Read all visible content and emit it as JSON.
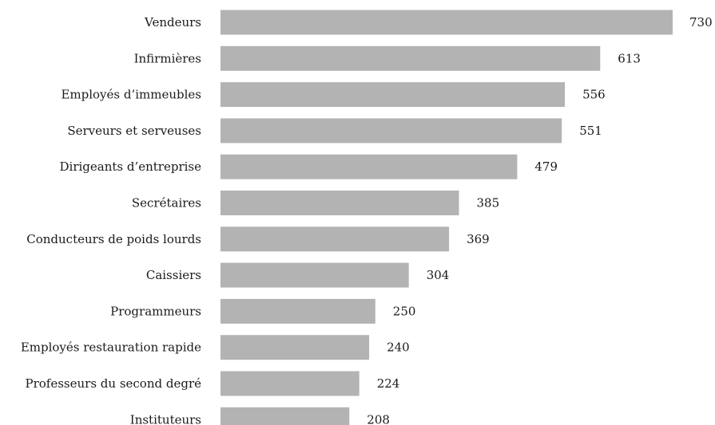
{
  "chart_data": {
    "type": "bar",
    "orientation": "horizontal",
    "categories": [
      "Vendeurs",
      "Infirmières",
      "Employés d’immeubles",
      "Serveurs et serveuses",
      "Dirigeants d’entreprise",
      "Secrétaires",
      "Conducteurs de poids lourds",
      "Caissiers",
      "Programmeurs",
      "Employés restauration rapide",
      "Professeurs du second degré",
      "Instituteurs"
    ],
    "values": [
      730,
      613,
      556,
      551,
      479,
      385,
      369,
      304,
      250,
      240,
      224,
      208
    ],
    "value_labels": [
      "730",
      "613",
      "556",
      "551",
      "479",
      "385",
      "369",
      "304",
      "250",
      "240",
      "224",
      "208"
    ],
    "title": "",
    "xlabel": "",
    "ylabel": "",
    "grid": false,
    "bar_color": "#b3b3b3",
    "text_color": "#1a1a1a"
  }
}
